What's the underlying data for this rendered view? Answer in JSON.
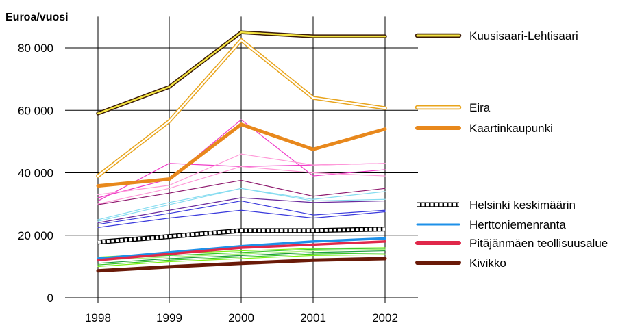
{
  "chart_data": {
    "type": "line",
    "ylabel": "Euroa/vuosi",
    "x": [
      "1998",
      "1999",
      "2000",
      "2001",
      "2002"
    ],
    "ylim": [
      0,
      90000
    ],
    "yticks": [
      0,
      20000,
      40000,
      60000,
      80000
    ],
    "ytick_labels": [
      "0",
      "20 000",
      "40 000",
      "60 000",
      "80 000"
    ],
    "grid": true,
    "legend_position": "right",
    "series": [
      {
        "name": "Kuusisaari-Lehtisaari",
        "values": [
          59000,
          67500,
          85000,
          83700,
          83700
        ],
        "color": "#f5e642",
        "outline": "#3a1a08",
        "style": "double",
        "legend": true
      },
      {
        "name": "Eira",
        "values": [
          39000,
          56500,
          82500,
          64000,
          60700
        ],
        "color": "#ffffff",
        "outline": "#e8a41c",
        "style": "double",
        "legend": true
      },
      {
        "name": "Kaartinkaupunki",
        "values": [
          35800,
          38000,
          55500,
          47500,
          54000
        ],
        "color": "#e8881c",
        "style": "thick",
        "legend": true
      },
      {
        "values": [
          32000,
          38000,
          57000,
          39000,
          41000
        ],
        "color": "#f03cc8",
        "style": "thin"
      },
      {
        "values": [
          31000,
          43000,
          42000,
          42500,
          43000
        ],
        "color": "#f03cc8",
        "style": "thin"
      },
      {
        "values": [
          33000,
          36000,
          46000,
          42500,
          43000
        ],
        "color": "#ff9ad8",
        "style": "thin"
      },
      {
        "values": [
          30000,
          35000,
          42000,
          40000,
          39000
        ],
        "color": "#ff9ad8",
        "style": "thin"
      },
      {
        "values": [
          29800,
          33500,
          37600,
          32500,
          35000
        ],
        "color": "#8e1a6e",
        "style": "thin"
      },
      {
        "values": [
          25000,
          30500,
          35000,
          31500,
          34000
        ],
        "color": "#86dcf0",
        "style": "thin"
      },
      {
        "values": [
          24500,
          29800,
          35000,
          31000,
          31500
        ],
        "color": "#86dcf0",
        "style": "thin"
      },
      {
        "values": [
          24000,
          28000,
          32000,
          30500,
          31000
        ],
        "color": "#6a2a9c",
        "style": "thin"
      },
      {
        "values": [
          23500,
          27000,
          31000,
          26500,
          28000
        ],
        "color": "#3a3adc",
        "style": "thin"
      },
      {
        "values": [
          22500,
          25500,
          28000,
          25500,
          27500
        ],
        "color": "#3a3adc",
        "style": "thin"
      },
      {
        "name": "Helsinki keskimäärin",
        "values": [
          17800,
          19600,
          21500,
          21500,
          22000
        ],
        "color": "#ffffff",
        "outline": "#000000",
        "style": "dotted",
        "legend": true
      },
      {
        "name": "Herttoniemenranta",
        "values": [
          12500,
          14500,
          16500,
          18000,
          19000
        ],
        "color": "#1e90e8",
        "style": "medium",
        "legend": true
      },
      {
        "name": "Pitäjänmäen teollisuusalue",
        "values": [
          12000,
          14000,
          16000,
          17000,
          18000
        ],
        "color": "#e0284a",
        "style": "medium",
        "legend": true
      },
      {
        "values": [
          13000,
          14200,
          15000,
          15800,
          16000
        ],
        "color": "#7cf010",
        "style": "thin"
      },
      {
        "values": [
          12500,
          13500,
          14500,
          15500,
          15800
        ],
        "color": "#3cc828",
        "style": "thin"
      },
      {
        "values": [
          12000,
          13000,
          14000,
          15000,
          15500
        ],
        "color": "#a8f078",
        "style": "thin"
      },
      {
        "values": [
          11000,
          12500,
          13500,
          14500,
          15000
        ],
        "color": "#1e9e3c",
        "style": "thin"
      },
      {
        "values": [
          10500,
          12000,
          13000,
          14000,
          14300
        ],
        "color": "#3cc828",
        "style": "thin"
      },
      {
        "values": [
          10000,
          11500,
          12500,
          13500,
          13800
        ],
        "color": "#7cf010",
        "style": "thin"
      },
      {
        "name": "Kivikko",
        "values": [
          8600,
          9900,
          11000,
          12000,
          12500
        ],
        "color": "#6a1a08",
        "style": "thick",
        "legend": true
      }
    ]
  }
}
